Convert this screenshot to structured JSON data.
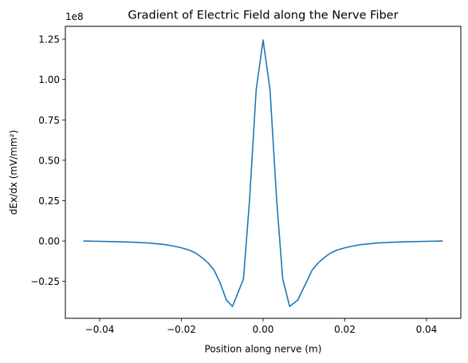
{
  "chart_data": {
    "type": "line",
    "title": "Gradient of Electric Field along the Nerve Fiber",
    "xlabel": "Position along nerve (m)",
    "ylabel": "dEx/dx (mV/mm²)",
    "y_offset_label": "1e8",
    "xlim": [
      -0.0484,
      0.0484
    ],
    "ylim": [
      -0.4787,
      1.3294
    ],
    "x_ticks": [
      -0.04,
      -0.02,
      0.0,
      0.02,
      0.04
    ],
    "x_tick_labels": [
      "−0.04",
      "−0.02",
      "0.00",
      "0.02",
      "0.04"
    ],
    "y_ticks": [
      -0.25,
      0.0,
      0.25,
      0.5,
      0.75,
      1.0,
      1.25
    ],
    "y_tick_labels": [
      "−0.25",
      "0.00",
      "0.25",
      "0.50",
      "0.75",
      "1.00",
      "1.25"
    ],
    "grid": false,
    "series": [
      {
        "color": "#1f77b4",
        "x": [
          -0.044,
          -0.04,
          -0.036,
          -0.032,
          -0.028,
          -0.024,
          -0.022,
          -0.02,
          -0.018,
          -0.0165,
          -0.015,
          -0.0135,
          -0.012,
          -0.0105,
          -0.009,
          -0.0075,
          -0.0048,
          -0.0033,
          -0.0017,
          0.0,
          0.0017,
          0.0033,
          0.0048,
          0.0065,
          0.0085,
          0.0105,
          0.012,
          0.0135,
          0.015,
          0.0165,
          0.018,
          0.02,
          0.022,
          0.024,
          0.028,
          0.032,
          0.036,
          0.04,
          0.044
        ],
        "y": [
          0.0,
          -0.002,
          -0.004,
          -0.007,
          -0.012,
          -0.022,
          -0.031,
          -0.042,
          -0.057,
          -0.075,
          -0.102,
          -0.135,
          -0.18,
          -0.26,
          -0.365,
          -0.405,
          -0.235,
          0.26,
          0.935,
          1.245,
          0.935,
          0.26,
          -0.235,
          -0.405,
          -0.365,
          -0.26,
          -0.18,
          -0.135,
          -0.102,
          -0.075,
          -0.057,
          -0.042,
          -0.031,
          -0.022,
          -0.012,
          -0.007,
          -0.004,
          -0.002,
          0.0
        ]
      }
    ]
  }
}
